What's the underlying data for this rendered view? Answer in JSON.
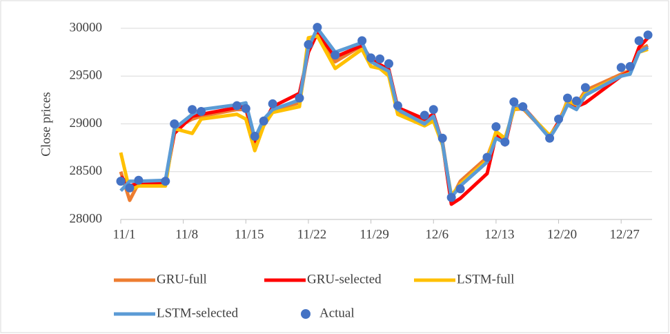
{
  "chart_data": {
    "type": "line",
    "y_label": "Close prices",
    "x": [
      "11/1",
      "11/2",
      "11/3",
      "11/6",
      "11/7",
      "11/9",
      "11/10",
      "11/14",
      "11/15",
      "11/16",
      "11/17",
      "11/18",
      "11/21",
      "11/22",
      "11/23",
      "11/25",
      "11/28",
      "11/29",
      "11/30",
      "12/1",
      "12/2",
      "12/5",
      "12/6",
      "12/7",
      "12/8",
      "12/9",
      "12/12",
      "12/13",
      "12/14",
      "12/15",
      "12/16",
      "12/19",
      "12/20",
      "12/21",
      "12/22",
      "12/23",
      "12/27",
      "12/28",
      "12/29",
      "12/30"
    ],
    "xlim": [
      "11/1",
      "12/31"
    ],
    "xticks": [
      "11/1",
      "11/8",
      "11/15",
      "11/22",
      "11/29",
      "12/6",
      "12/13",
      "12/20",
      "12/27"
    ],
    "ylim": [
      28000,
      30000
    ],
    "yticks": [
      28000,
      28500,
      29000,
      29500,
      30000
    ],
    "grid": true,
    "legend": "bottom",
    "series": [
      {
        "name": "GRU-full",
        "color": "#ed7d31",
        "mode": "lines",
        "values": [
          28500,
          28200,
          28380,
          28380,
          28950,
          29050,
          29080,
          29150,
          29150,
          28800,
          29000,
          29150,
          29220,
          29780,
          29970,
          29650,
          29820,
          29650,
          29600,
          29550,
          29130,
          29020,
          29060,
          28820,
          28220,
          28400,
          28650,
          28900,
          28830,
          29150,
          29160,
          28870,
          29000,
          29250,
          29200,
          29350,
          29520,
          29560,
          29780,
          29820
        ]
      },
      {
        "name": "GRU-selected",
        "color": "#ff0000",
        "mode": "lines",
        "values": [
          28450,
          28350,
          28380,
          28390,
          28900,
          29080,
          29100,
          29170,
          29180,
          28820,
          29000,
          29180,
          29320,
          29750,
          29950,
          29700,
          29820,
          29680,
          29620,
          29570,
          29170,
          29050,
          29100,
          28800,
          28160,
          28220,
          28480,
          28880,
          28780,
          29180,
          29180,
          28870,
          29020,
          29230,
          29180,
          29220,
          29500,
          29550,
          29800,
          29900
        ]
      },
      {
        "name": "LSTM-full",
        "color": "#ffc000",
        "mode": "lines",
        "values": [
          28700,
          28300,
          28350,
          28350,
          28950,
          28900,
          29050,
          29100,
          29050,
          28720,
          28980,
          29120,
          29180,
          29900,
          29920,
          29580,
          29780,
          29600,
          29580,
          29500,
          29100,
          28980,
          29030,
          28780,
          28250,
          28370,
          28620,
          28920,
          28850,
          29150,
          29170,
          28880,
          29000,
          29240,
          29200,
          29320,
          29500,
          29530,
          29750,
          29780
        ]
      },
      {
        "name": "LSTM-selected",
        "color": "#5b9bd5",
        "mode": "lines",
        "values": [
          28300,
          28400,
          28400,
          28410,
          28950,
          29100,
          29150,
          29200,
          29220,
          28850,
          29050,
          29150,
          29250,
          29800,
          30000,
          29750,
          29850,
          29650,
          29600,
          29550,
          29150,
          29000,
          29080,
          28800,
          28230,
          28350,
          28600,
          28850,
          28800,
          29200,
          29180,
          28850,
          29000,
          29200,
          29150,
          29300,
          29500,
          29520,
          29750,
          29800
        ]
      },
      {
        "name": "Actual",
        "color": "#4472c4",
        "mode": "markers",
        "values": [
          28400,
          28330,
          28410,
          28400,
          29000,
          29150,
          29130,
          29190,
          29160,
          28870,
          29030,
          29210,
          29270,
          29830,
          30010,
          29720,
          29870,
          29690,
          29680,
          29630,
          29190,
          29090,
          29150,
          28850,
          28230,
          28320,
          28650,
          28970,
          28810,
          29230,
          29180,
          28850,
          29050,
          29270,
          29240,
          29380,
          29590,
          29600,
          29870,
          29930
        ]
      }
    ]
  }
}
